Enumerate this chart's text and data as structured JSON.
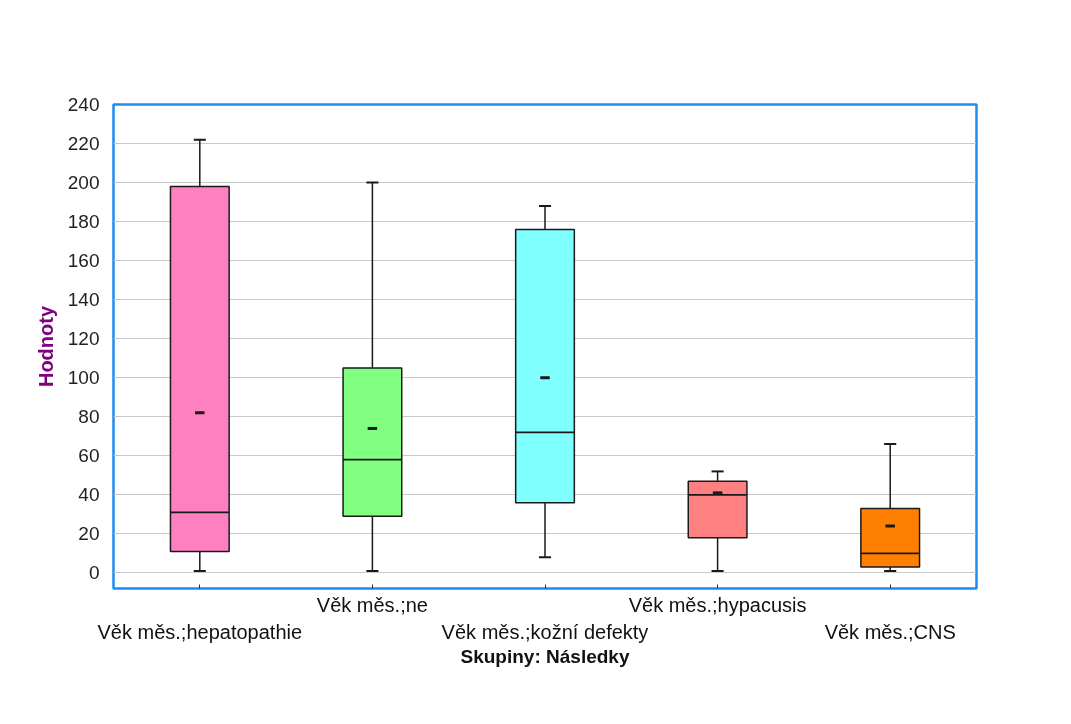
{
  "chart_data": {
    "type": "box",
    "xlabel": "Skupiny: Následky",
    "ylabel": "Hodnoty",
    "categories": [
      "Věk měs.;hepatopathie",
      "Věk měs.;ne",
      "Věk měs.;kožní defekty",
      "Věk měs.;hypacusis",
      "Věk měs.;CNS"
    ],
    "boxes": [
      {
        "low": 1,
        "q1": 11,
        "median": 31,
        "q3": 198,
        "high": 222,
        "mean": 82
      },
      {
        "low": 1,
        "q1": 29,
        "median": 58,
        "q3": 105,
        "high": 200,
        "mean": 74
      },
      {
        "low": 8,
        "q1": 36,
        "median": 72,
        "q3": 176,
        "high": 188,
        "mean": 100
      },
      {
        "low": 1,
        "q1": 18,
        "median": 40,
        "q3": 47,
        "high": 52,
        "mean": 41
      },
      {
        "low": 1,
        "q1": 3,
        "median": 10,
        "q3": 33,
        "high": 66,
        "mean": 24
      }
    ],
    "colors": [
      "#ff80c0",
      "#80ff80",
      "#80ffff",
      "#ff8080",
      "#ff8000"
    ],
    "ylim": [
      -8,
      240
    ],
    "yticks": [
      0,
      20,
      40,
      60,
      80,
      100,
      120,
      140,
      160,
      180,
      200,
      220,
      240
    ],
    "grid": "y"
  }
}
